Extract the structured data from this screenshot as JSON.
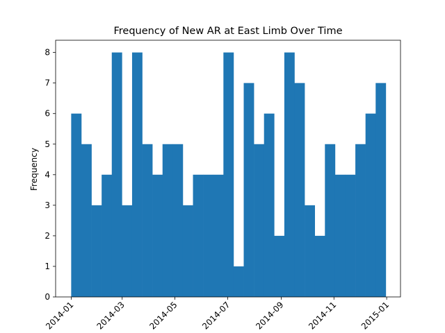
{
  "colors": {
    "bar": "#1f77b4",
    "axis": "#000000",
    "background": "#ffffff"
  },
  "chart_data": {
    "type": "bar",
    "title": "Frequency of New AR at East Limb Over Time",
    "xlabel": "",
    "ylabel": "Frequency",
    "ylim": [
      0,
      8.4
    ],
    "yticks": [
      0,
      1,
      2,
      3,
      4,
      5,
      6,
      7,
      8
    ],
    "xlim": [
      "2013-12-14",
      "2015-01-17"
    ],
    "xticks": [
      "2014-01",
      "2014-03",
      "2014-05",
      "2014-07",
      "2014-09",
      "2014-11",
      "2015-01"
    ],
    "grid": false,
    "legend": "none",
    "bins": {
      "start": "2014-01-01",
      "end": "2014-12-31",
      "count": 31
    },
    "values": [
      6,
      5,
      3,
      4,
      8,
      3,
      8,
      5,
      4,
      5,
      5,
      3,
      4,
      4,
      4,
      8,
      1,
      7,
      5,
      6,
      2,
      8,
      7,
      3,
      2,
      5,
      4,
      4,
      5,
      6,
      7
    ]
  }
}
